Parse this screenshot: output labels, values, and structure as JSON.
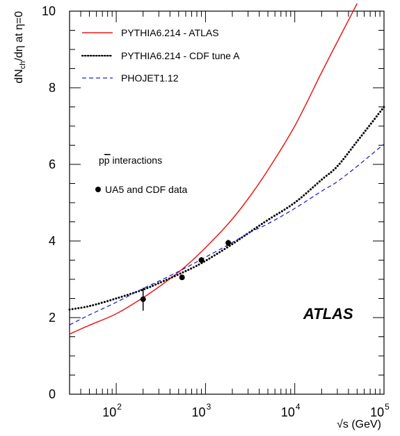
{
  "chart_data": {
    "type": "line",
    "x_scale": "log",
    "xlim": [
      30,
      100000
    ],
    "ylim": [
      0,
      10
    ],
    "grid": false,
    "legend_position": "top-left",
    "xlabel": "√s (GeV)",
    "ylabel": "dN_ch/dη at η=0",
    "ylabel_parts": {
      "main": "dN",
      "sub": "ch",
      "rest": "/dη at η=0"
    },
    "x_ticks": [
      {
        "value": 100,
        "base": "10",
        "exp": "2"
      },
      {
        "value": 1000,
        "base": "10",
        "exp": "3"
      },
      {
        "value": 10000,
        "base": "10",
        "exp": "4"
      },
      {
        "value": 100000,
        "base": "10",
        "exp": "5"
      }
    ],
    "y_ticks": [
      {
        "value": 0,
        "label": "0"
      },
      {
        "value": 2,
        "label": "2"
      },
      {
        "value": 4,
        "label": "4"
      },
      {
        "value": 6,
        "label": "6"
      },
      {
        "value": 8,
        "label": "8"
      },
      {
        "value": 10,
        "label": "10"
      }
    ],
    "series": [
      {
        "name": "PYTHIA6.214 - ATLAS",
        "color": "#e8191a",
        "style": "solid",
        "x": [
          30,
          50,
          100,
          200,
          300,
          546,
          900,
          1800,
          3000,
          5000,
          10000,
          20000,
          30000,
          50000
        ],
        "y": [
          1.57,
          1.8,
          2.1,
          2.52,
          2.8,
          3.26,
          3.72,
          4.45,
          5.1,
          5.85,
          7.0,
          8.4,
          9.2,
          10.2
        ]
      },
      {
        "name": "PYTHIA6.214 - CDF tune A",
        "color": "#000000",
        "style": "dotted",
        "x": [
          30,
          50,
          100,
          200,
          300,
          546,
          900,
          1800,
          3000,
          5000,
          10000,
          20000,
          30000,
          50000,
          100000
        ],
        "y": [
          2.21,
          2.3,
          2.5,
          2.73,
          2.9,
          3.17,
          3.42,
          3.85,
          4.2,
          4.55,
          5.0,
          5.6,
          5.95,
          6.6,
          7.5
        ]
      },
      {
        "name": "PHOJET1.12",
        "color": "#2222cc",
        "style": "dashed",
        "x": [
          30,
          50,
          100,
          200,
          300,
          546,
          900,
          1800,
          3000,
          5000,
          10000,
          20000,
          30000,
          50000,
          100000
        ],
        "y": [
          1.81,
          2.07,
          2.4,
          2.76,
          2.95,
          3.25,
          3.52,
          3.9,
          4.2,
          4.45,
          4.85,
          5.3,
          5.55,
          5.95,
          6.53
        ]
      }
    ],
    "data_points": {
      "name": "UA5 and CDF data",
      "color": "#000000",
      "points": [
        {
          "x": 200,
          "y": 2.48,
          "err": 0.3
        },
        {
          "x": 546,
          "y": 3.05,
          "err": 0.05
        },
        {
          "x": 900,
          "y": 3.5,
          "err": 0.08
        },
        {
          "x": 1800,
          "y": 3.95,
          "err": 0.08
        }
      ]
    },
    "annotations": {
      "process": {
        "prefix": "p",
        "bar": "p",
        "suffix": " interactions"
      },
      "dataset": "UA5 and CDF data",
      "experiment": "ATLAS"
    }
  }
}
